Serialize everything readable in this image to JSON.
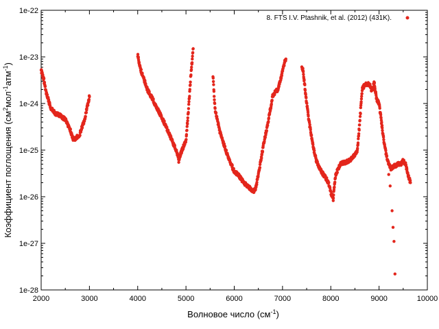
{
  "chart_data": {
    "type": "scatter",
    "title": "",
    "xlabel": "Волновое число (см",
    "xlabel_sup": "-1",
    "xlabel_end": ")",
    "ylabel_parts": [
      "Коэффициент поглощения (см",
      "2",
      "мол",
      "-1",
      "атм",
      "-1",
      ")"
    ],
    "xlim": [
      2000,
      10000
    ],
    "ylim": [
      1e-28,
      1e-22
    ],
    "yscale": "log",
    "x_ticks": [
      2000,
      3000,
      4000,
      5000,
      6000,
      7000,
      8000,
      9000,
      10000
    ],
    "x_tick_labels": [
      "2000",
      "3000",
      "4000",
      "5000",
      "6000",
      "7000",
      "8000",
      "9000",
      "10000"
    ],
    "y_ticks": [
      1e-28,
      1e-27,
      1e-26,
      1e-25,
      1e-24,
      1e-23,
      1e-22
    ],
    "y_tick_labels": [
      "1e-28",
      "1e-27",
      "1e-26",
      "1e-25",
      "1e-24",
      "1e-23",
      "1e-22"
    ],
    "grid": false,
    "legend_placement": "top-right",
    "series": [
      {
        "name": "8. FTS I.V. Ptashnik, et al. (2012) (431K).",
        "color": "#e3261c",
        "segments": [
          [
            [
              2000,
              5e-24
            ],
            [
              2050,
              3.5e-24
            ],
            [
              2100,
              1.8e-24
            ],
            [
              2150,
              1.2e-24
            ],
            [
              2200,
              8e-25
            ],
            [
              2300,
              6e-25
            ],
            [
              2400,
              5.5e-25
            ],
            [
              2500,
              4.5e-25
            ],
            [
              2600,
              2.8e-25
            ],
            [
              2650,
              1.8e-25
            ],
            [
              2700,
              1.7e-25
            ],
            [
              2800,
              2.2e-25
            ],
            [
              2900,
              4.5e-25
            ],
            [
              2950,
              8e-25
            ],
            [
              3000,
              1.4e-24
            ]
          ],
          [
            [
              4000,
              1.1e-23
            ],
            [
              4050,
              6e-24
            ],
            [
              4100,
              4e-24
            ],
            [
              4200,
              2e-24
            ],
            [
              4300,
              1.3e-24
            ],
            [
              4400,
              8e-25
            ],
            [
              4500,
              5e-25
            ],
            [
              4600,
              3e-25
            ],
            [
              4700,
              1.7e-25
            ],
            [
              4800,
              1e-25
            ],
            [
              4850,
              6e-26
            ],
            [
              4900,
              9e-26
            ],
            [
              5000,
              1.6e-25
            ],
            [
              5050,
              7e-25
            ],
            [
              5100,
              4e-24
            ],
            [
              5150,
              1.5e-23
            ]
          ],
          [
            [
              5560,
              4e-24
            ],
            [
              5600,
              8e-25
            ],
            [
              5700,
              2.5e-25
            ],
            [
              5800,
              1.2e-25
            ],
            [
              5900,
              6e-26
            ],
            [
              6000,
              3.5e-26
            ],
            [
              6100,
              2.8e-26
            ],
            [
              6200,
              2e-26
            ],
            [
              6300,
              1.6e-26
            ],
            [
              6400,
              1.3e-26
            ],
            [
              6450,
              1.6e-26
            ],
            [
              6500,
              3e-26
            ],
            [
              6550,
              6e-26
            ],
            [
              6600,
              1.2e-25
            ],
            [
              6700,
              4e-25
            ],
            [
              6800,
              1.5e-24
            ],
            [
              6900,
              2e-24
            ],
            [
              6950,
              3e-24
            ],
            [
              7000,
              5e-24
            ],
            [
              7050,
              8e-24
            ],
            [
              7070,
              9e-24
            ]
          ],
          [
            [
              7400,
              6e-24
            ],
            [
              7430,
              5e-24
            ],
            [
              7450,
              3e-24
            ],
            [
              7500,
              1e-24
            ],
            [
              7550,
              4e-25
            ],
            [
              7600,
              2e-25
            ],
            [
              7650,
              1e-25
            ],
            [
              7700,
              6e-26
            ],
            [
              7800,
              3.5e-26
            ],
            [
              7900,
              2.5e-26
            ],
            [
              7950,
              2e-26
            ],
            [
              8000,
              1.2e-26
            ],
            [
              8050,
              9e-27
            ],
            [
              8100,
              3e-26
            ],
            [
              8200,
              5e-26
            ],
            [
              8300,
              5.5e-26
            ],
            [
              8400,
              6e-26
            ],
            [
              8500,
              8e-26
            ],
            [
              8550,
              1e-25
            ],
            [
              8600,
              4e-25
            ],
            [
              8650,
              2e-24
            ],
            [
              8700,
              2.5e-24
            ],
            [
              8800,
              2.6e-24
            ],
            [
              8850,
              1.8e-24
            ],
            [
              8900,
              2.8e-24
            ],
            [
              8950,
              1.2e-24
            ],
            [
              9000,
              1e-24
            ],
            [
              9050,
              4e-25
            ],
            [
              9100,
              1.5e-25
            ],
            [
              9150,
              8e-26
            ],
            [
              9200,
              5e-26
            ],
            [
              9250,
              4e-26
            ],
            [
              9300,
              4.5e-26
            ],
            [
              9400,
              5e-26
            ],
            [
              9450,
              5e-26
            ],
            [
              9500,
              6e-26
            ],
            [
              9550,
              5e-26
            ],
            [
              9600,
              3e-26
            ],
            [
              9650,
              2e-26
            ]
          ]
        ],
        "outliers": [
          [
            9200,
            3e-26
          ],
          [
            9230,
            1.7e-26
          ],
          [
            9270,
            5e-27
          ],
          [
            9290,
            2.2e-27
          ],
          [
            9310,
            1.1e-27
          ],
          [
            9330,
            2.2e-28
          ],
          [
            9600,
            6.5e-23
          ]
        ]
      }
    ]
  }
}
